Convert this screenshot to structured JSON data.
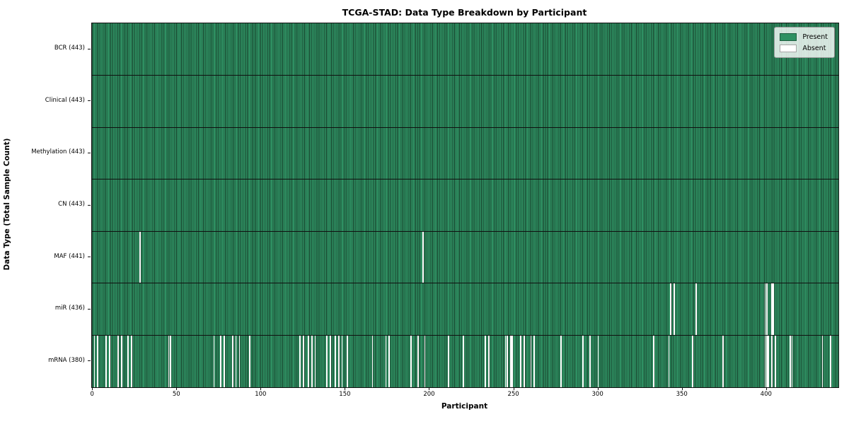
{
  "figure": {
    "title": "TCGA-STAD: Data Type Breakdown by Participant",
    "xlabel": "Participant",
    "ylabel": "Data Type (Total Sample Count)"
  },
  "legend": {
    "items": [
      {
        "label": "Present",
        "color": "#2f9163"
      },
      {
        "label": "Absent",
        "color": "#ffffff"
      }
    ]
  },
  "chart_data": {
    "type": "heatmap",
    "title": "TCGA-STAD: Data Type Breakdown by Participant",
    "xlabel": "Participant",
    "ylabel": "Data Type (Total Sample Count)",
    "legend_position": "upper right",
    "legend_entries": [
      "Present",
      "Absent"
    ],
    "n_participants": 443,
    "xlim": [
      -0.5,
      442.5
    ],
    "x_ticks": [
      0,
      50,
      100,
      150,
      200,
      250,
      300,
      350,
      400
    ],
    "grid": false,
    "colors": {
      "present": "#2f9163",
      "present_edge": "#17402b",
      "absent": "#ffffff",
      "frame": "#101010"
    },
    "rows": [
      {
        "data_type": "BCR",
        "label": "BCR (443)",
        "total_samples": 443,
        "absent_count": 0,
        "absent_participants": []
      },
      {
        "data_type": "Clinical",
        "label": "Clinical (443)",
        "total_samples": 443,
        "absent_count": 0,
        "absent_participants": []
      },
      {
        "data_type": "Methylation",
        "label": "Methylation (443)",
        "total_samples": 443,
        "absent_count": 0,
        "absent_participants": []
      },
      {
        "data_type": "CN",
        "label": "CN (443)",
        "total_samples": 443,
        "absent_count": 0,
        "absent_participants": []
      },
      {
        "data_type": "MAF",
        "label": "MAF (441)",
        "total_samples": 441,
        "absent_count": 2,
        "absent_participants": [
          28,
          196
        ]
      },
      {
        "data_type": "miR",
        "label": "miR (436)",
        "total_samples": 436,
        "absent_count": 7,
        "absent_participants": [
          343,
          345,
          358,
          399,
          400,
          403,
          404
        ]
      },
      {
        "data_type": "mRNA",
        "label": "mRNA (380)",
        "total_samples": 380,
        "absent_count": 63,
        "absent_participants": [
          1,
          3,
          8,
          10,
          15,
          17,
          21,
          23,
          45,
          46,
          72,
          76,
          78,
          83,
          85,
          87,
          93,
          123,
          125,
          128,
          130,
          132,
          139,
          141,
          144,
          146,
          148,
          151,
          166,
          174,
          176,
          189,
          193,
          197,
          211,
          220,
          233,
          235,
          245,
          246,
          248,
          249,
          254,
          256,
          260,
          262,
          278,
          291,
          295,
          300,
          333,
          342,
          356,
          374,
          399,
          400,
          401,
          403,
          405,
          414,
          415,
          433,
          438
        ]
      }
    ]
  }
}
